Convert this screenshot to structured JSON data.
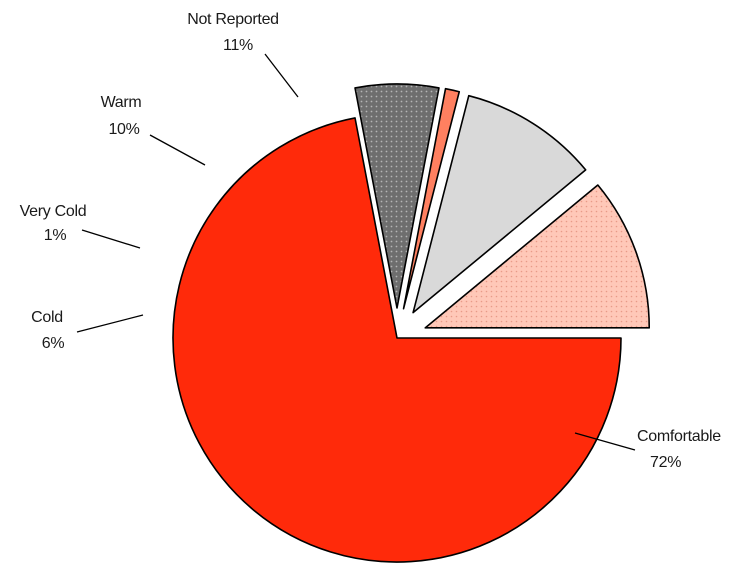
{
  "chart_data": {
    "type": "pie",
    "title": "",
    "slices": [
      {
        "label": "Comfortable",
        "value": 72,
        "value_label": "72%",
        "color": "#ff2a0a",
        "pattern": "solid"
      },
      {
        "label": "Cold",
        "value": 6,
        "value_label": "6%",
        "color": "#6e6e6e",
        "pattern": "dots"
      },
      {
        "label": "Very Cold",
        "value": 1,
        "value_label": "1%",
        "color": "#ff8060",
        "pattern": "solid"
      },
      {
        "label": "Warm",
        "value": 10,
        "value_label": "10%",
        "color": "#d9d9d9",
        "pattern": "solid"
      },
      {
        "label": "Not Reported",
        "value": 11,
        "value_label": "11%",
        "color": "#ffc8b8",
        "pattern": "dots"
      }
    ],
    "exploded": [
      "Cold",
      "Very Cold",
      "Warm",
      "Not Reported"
    ],
    "legend": "none"
  }
}
